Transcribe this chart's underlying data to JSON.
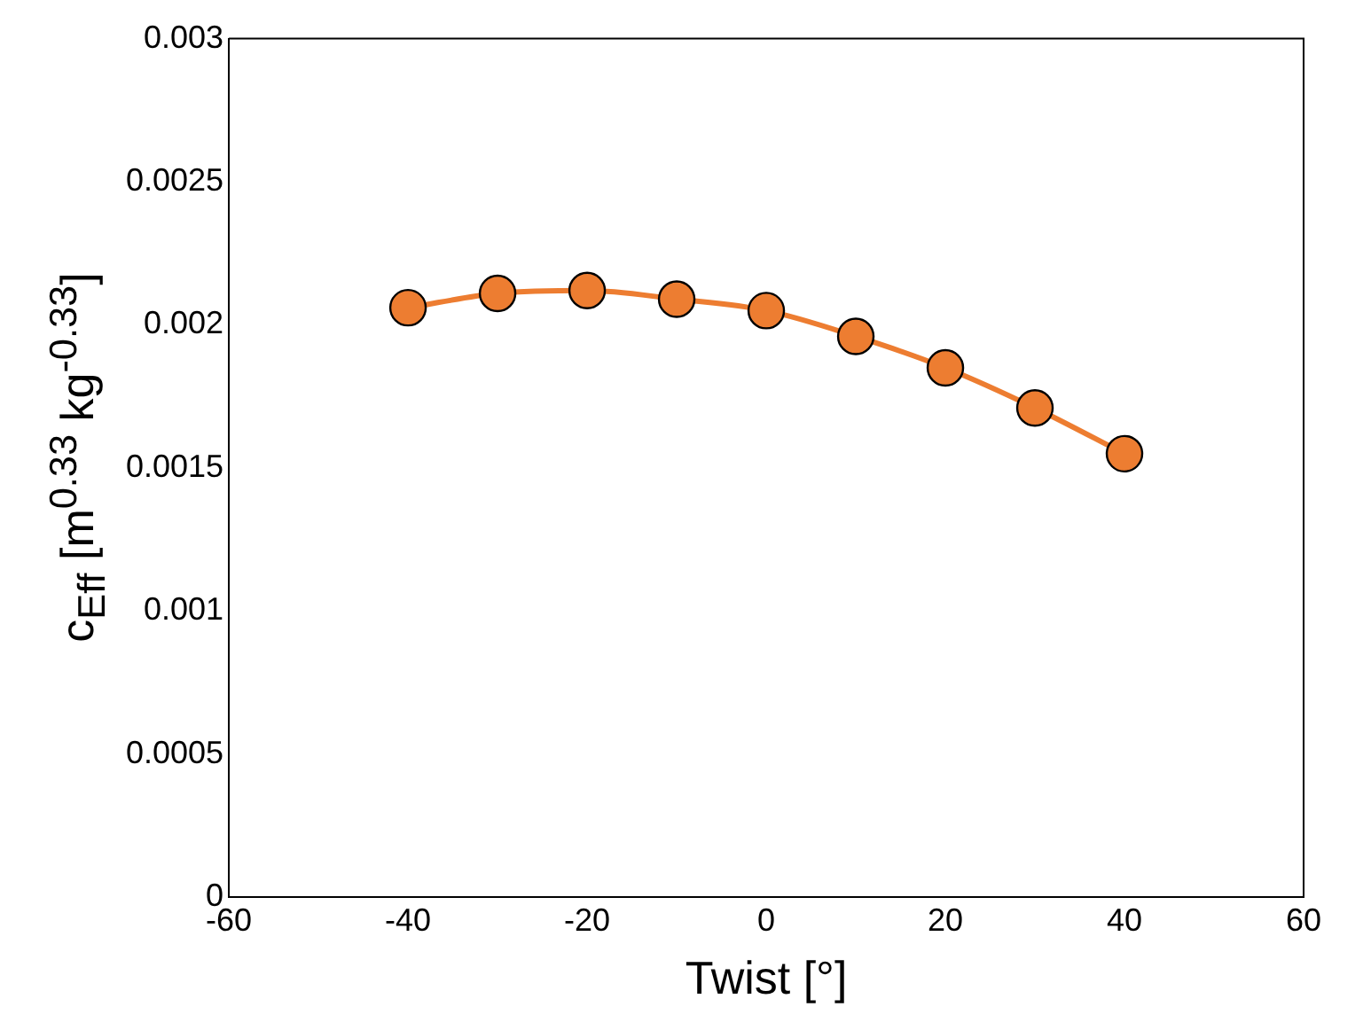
{
  "chart_data": {
    "type": "line",
    "xlabel": "Twist [°]",
    "ylabel": "c$_{Eff}$ [m$^{0.33}$ kg$^{-0.33}$]",
    "x": [
      -40,
      -30,
      -20,
      -10,
      0,
      10,
      20,
      30,
      40
    ],
    "series": [
      {
        "color": "#ed7d31",
        "values": [
          0.00206,
          0.00211,
          0.00212,
          0.00209,
          0.00205,
          0.00196,
          0.00185,
          0.00171,
          0.00155
        ]
      }
    ],
    "xlim": [
      -60,
      60
    ],
    "xticks": [
      -60,
      -40,
      -20,
      0,
      20,
      40,
      60
    ],
    "ylim": [
      0,
      0.003
    ],
    "yticks": [
      0,
      0.0005,
      0.001,
      0.0015,
      0.002,
      0.0025,
      0.003
    ],
    "grid": false,
    "legend": false,
    "marker": "circle",
    "line_style": "solid"
  }
}
